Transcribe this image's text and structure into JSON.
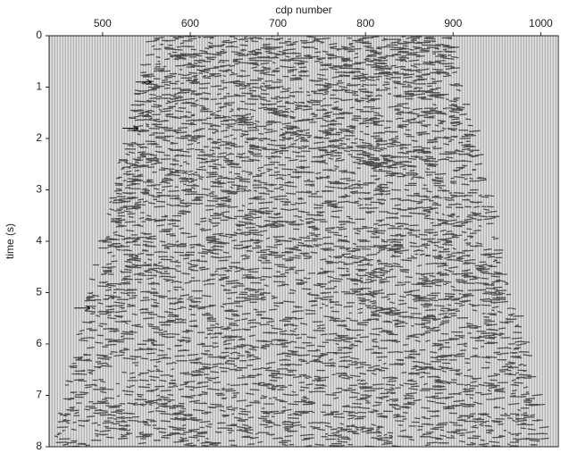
{
  "chart_data": {
    "type": "seismic",
    "xlabel": "cdp number",
    "ylabel": "time (s)",
    "xlim": [
      439,
      1020
    ],
    "xticks": [
      500,
      600,
      700,
      800,
      900,
      1000
    ],
    "ylim": [
      0,
      8
    ],
    "yticks": [
      0,
      1,
      2,
      3,
      4,
      5,
      6,
      7,
      8
    ],
    "arrows": [
      {
        "x": 555,
        "y": 0.9
      },
      {
        "x": 540,
        "y": 1.8
      },
      {
        "x": 485,
        "y": 5.3
      }
    ]
  }
}
